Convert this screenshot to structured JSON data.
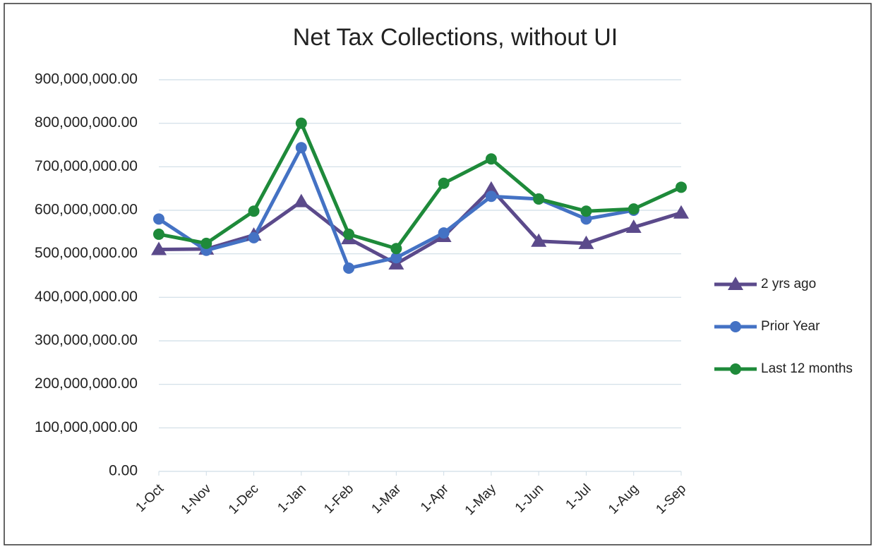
{
  "chart_data": {
    "type": "line",
    "title": "Net Tax Collections, without UI",
    "categories": [
      "1-Oct",
      "1-Nov",
      "1-Dec",
      "1-Jan",
      "1-Feb",
      "1-Mar",
      "1-Apr",
      "1-May",
      "1-Jun",
      "1-Jul",
      "1-Aug",
      "1-Sep"
    ],
    "series": [
      {
        "name": "2 yrs ago",
        "color": "#5b4a8b",
        "marker": "triangle",
        "values": [
          510000000,
          511000000,
          543000000,
          620000000,
          535000000,
          477000000,
          540000000,
          649000000,
          529000000,
          524000000,
          561000000,
          594000000
        ]
      },
      {
        "name": "Prior Year",
        "color": "#4472c4",
        "marker": "circle",
        "values": [
          580000000,
          508000000,
          537000000,
          744000000,
          467000000,
          491000000,
          548000000,
          632000000,
          626000000,
          580000000,
          600000000,
          null
        ]
      },
      {
        "name": "Last 12 months",
        "color": "#1e8a3a",
        "marker": "circle",
        "values": [
          545000000,
          524000000,
          598000000,
          800000000,
          545000000,
          512000000,
          662000000,
          718000000,
          626000000,
          598000000,
          603000000,
          653000000
        ]
      }
    ],
    "ylim": [
      0,
      900000000
    ],
    "yticks": [
      {
        "value": 0,
        "label": "0.00"
      },
      {
        "value": 100000000,
        "label": "100,000,000.00"
      },
      {
        "value": 200000000,
        "label": "200,000,000.00"
      },
      {
        "value": 300000000,
        "label": "300,000,000.00"
      },
      {
        "value": 400000000,
        "label": "400,000,000.00"
      },
      {
        "value": 500000000,
        "label": "500,000,000.00"
      },
      {
        "value": 600000000,
        "label": "600,000,000.00"
      },
      {
        "value": 700000000,
        "label": "700,000,000.00"
      },
      {
        "value": 800000000,
        "label": "800,000,000.00"
      },
      {
        "value": 900000000,
        "label": "900,000,000.00"
      }
    ],
    "grid": true,
    "legend": "right"
  }
}
